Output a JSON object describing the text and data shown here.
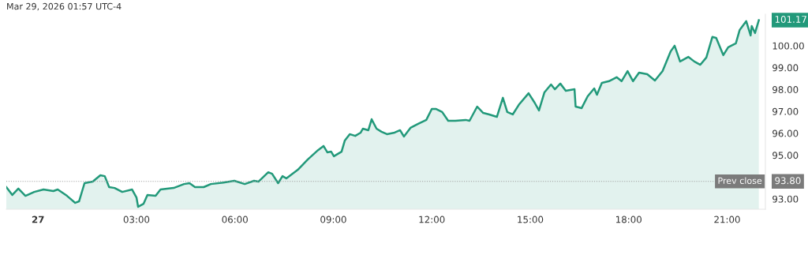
{
  "chart_data": {
    "type": "area",
    "title": "Mar 29, 2026 01:57 UTC-4",
    "x": [
      "2026-03-26T23:02",
      "2026-03-26T23:13",
      "2026-03-26T23:24",
      "2026-03-26T23:37",
      "2026-03-26T23:53",
      "2026-03-27T00:10",
      "2026-03-27T00:28",
      "2026-03-27T00:36",
      "2026-03-27T00:53",
      "2026-03-27T01:08",
      "2026-03-27T01:15",
      "2026-03-27T01:25",
      "2026-03-27T01:40",
      "2026-03-27T01:54",
      "2026-03-27T02:02",
      "2026-03-27T02:10",
      "2026-03-27T02:20",
      "2026-03-27T02:34",
      "2026-03-27T02:52",
      "2026-03-27T03:00",
      "2026-03-27T03:03",
      "2026-03-27T03:13",
      "2026-03-27T03:20",
      "2026-03-27T03:35",
      "2026-03-27T03:44",
      "2026-03-27T04:08",
      "2026-03-27T04:27",
      "2026-03-27T04:37",
      "2026-03-27T04:47",
      "2026-03-27T05:03",
      "2026-03-27T05:16",
      "2026-03-27T05:39",
      "2026-03-27T05:59",
      "2026-03-27T06:18",
      "2026-03-27T06:35",
      "2026-03-27T06:43",
      "2026-03-27T07:01",
      "2026-03-27T07:08",
      "2026-03-27T07:19",
      "2026-03-27T07:27",
      "2026-03-27T07:34",
      "2026-03-27T07:55",
      "2026-03-27T08:13",
      "2026-03-27T08:32",
      "2026-03-27T08:42",
      "2026-03-27T08:49",
      "2026-03-27T08:56",
      "2026-03-27T09:01",
      "2026-03-27T09:15",
      "2026-03-27T09:21",
      "2026-03-27T09:30",
      "2026-03-27T09:40",
      "2026-03-27T09:50",
      "2026-03-27T09:54",
      "2026-03-27T10:04",
      "2026-03-27T10:10",
      "2026-03-27T10:19",
      "2026-03-27T10:28",
      "2026-03-27T10:38",
      "2026-03-27T10:52",
      "2026-03-27T11:02",
      "2026-03-27T11:09",
      "2026-03-27T11:21",
      "2026-03-27T11:35",
      "2026-03-27T11:50",
      "2026-03-27T12:00",
      "2026-03-27T12:08",
      "2026-03-27T12:19",
      "2026-03-27T12:30",
      "2026-03-27T12:43",
      "2026-03-27T13:02",
      "2026-03-27T13:09",
      "2026-03-27T13:23",
      "2026-03-27T13:34",
      "2026-03-27T13:45",
      "2026-03-27T13:59",
      "2026-03-27T14:10",
      "2026-03-27T14:18",
      "2026-03-27T14:28",
      "2026-03-27T14:40",
      "2026-03-27T14:57",
      "2026-03-27T15:08",
      "2026-03-27T15:16",
      "2026-03-27T15:26",
      "2026-03-27T15:38",
      "2026-03-27T15:45",
      "2026-03-27T15:55",
      "2026-03-27T16:05",
      "2026-03-27T16:21",
      "2026-03-27T16:23",
      "2026-03-27T16:34",
      "2026-03-27T16:45",
      "2026-03-27T16:57",
      "2026-03-27T17:02",
      "2026-03-27T17:11",
      "2026-03-27T17:24",
      "2026-03-27T17:38",
      "2026-03-27T17:47",
      "2026-03-27T17:58",
      "2026-03-27T18:08",
      "2026-03-27T18:19",
      "2026-03-27T18:34",
      "2026-03-27T18:48",
      "2026-03-27T19:02",
      "2026-03-27T19:17",
      "2026-03-27T19:24",
      "2026-03-27T19:34",
      "2026-03-27T19:49",
      "2026-03-27T20:00",
      "2026-03-27T20:11",
      "2026-03-27T20:22",
      "2026-03-27T20:33",
      "2026-03-27T20:40",
      "2026-03-27T20:53",
      "2026-03-27T21:02",
      "2026-03-27T21:16",
      "2026-03-27T21:23",
      "2026-03-27T21:35",
      "2026-03-27T21:43",
      "2026-03-27T21:45",
      "2026-03-27T21:51",
      "2026-03-27T21:58"
    ],
    "series": [
      {
        "color": "#22997a",
        "values": [
          93.54,
          93.18,
          93.47,
          93.14,
          93.32,
          93.43,
          93.36,
          93.43,
          93.14,
          92.82,
          92.89,
          93.72,
          93.79,
          94.08,
          94.04,
          93.54,
          93.5,
          93.32,
          93.43,
          93.07,
          92.64,
          92.78,
          93.18,
          93.14,
          93.43,
          93.5,
          93.68,
          93.72,
          93.54,
          93.54,
          93.68,
          93.75,
          93.83,
          93.68,
          93.83,
          93.79,
          94.22,
          94.15,
          93.72,
          94.04,
          93.94,
          94.33,
          94.8,
          95.23,
          95.42,
          95.13,
          95.16,
          94.95,
          95.16,
          95.67,
          95.96,
          95.88,
          96.03,
          96.21,
          96.14,
          96.64,
          96.21,
          96.07,
          95.96,
          96.03,
          96.14,
          95.85,
          96.25,
          96.43,
          96.61,
          97.11,
          97.11,
          96.97,
          96.57,
          96.57,
          96.61,
          96.57,
          97.22,
          96.93,
          96.86,
          96.75,
          97.62,
          96.97,
          96.86,
          97.33,
          97.83,
          97.4,
          97.04,
          97.87,
          98.23,
          98.01,
          98.27,
          97.94,
          98.01,
          97.22,
          97.15,
          97.69,
          98.05,
          97.76,
          98.3,
          98.38,
          98.56,
          98.38,
          98.84,
          98.38,
          98.77,
          98.7,
          98.41,
          98.84,
          99.75,
          100.0,
          99.28,
          99.49,
          99.28,
          99.13,
          99.46,
          100.4,
          100.36,
          99.57,
          99.93,
          100.11,
          100.72,
          101.12,
          100.47,
          100.9,
          100.58,
          101.17
        ]
      }
    ],
    "xlim": [
      "2026-03-26T23:02",
      "2026-03-27T22:10"
    ],
    "xticks": [
      {
        "value": "2026-03-27T00:00",
        "label": "27"
      },
      {
        "value": "2026-03-27T03:00",
        "label": "03:00"
      },
      {
        "value": "2026-03-27T06:00",
        "label": "06:00"
      },
      {
        "value": "2026-03-27T09:00",
        "label": "09:00"
      },
      {
        "value": "2026-03-27T12:00",
        "label": "12:00"
      },
      {
        "value": "2026-03-27T15:00",
        "label": "15:00"
      },
      {
        "value": "2026-03-27T18:00",
        "label": "18:00"
      },
      {
        "value": "2026-03-27T21:00",
        "label": "21:00"
      }
    ],
    "ylim": [
      92.53,
      101.44
    ],
    "yticks": [
      {
        "value": 93,
        "label": "93.00"
      },
      {
        "value": 95,
        "label": "95.00"
      },
      {
        "value": 96,
        "label": "96.00"
      },
      {
        "value": 97,
        "label": "97.00"
      },
      {
        "value": 98,
        "label": "98.00"
      },
      {
        "value": 99,
        "label": "99.00"
      },
      {
        "value": 100,
        "label": "100.00"
      }
    ],
    "ref_lines": [
      {
        "axis": "y",
        "value": 93.8,
        "label": "Prev close",
        "color": "#9e9e9e",
        "line_style": "dotted"
      }
    ],
    "annotations": [
      {
        "text": "101.17",
        "x": "2026-03-27T21:58",
        "y": 101.17
      },
      "93.80"
    ],
    "grid": false,
    "legend": false,
    "marker": "none",
    "line_style": "solid"
  }
}
